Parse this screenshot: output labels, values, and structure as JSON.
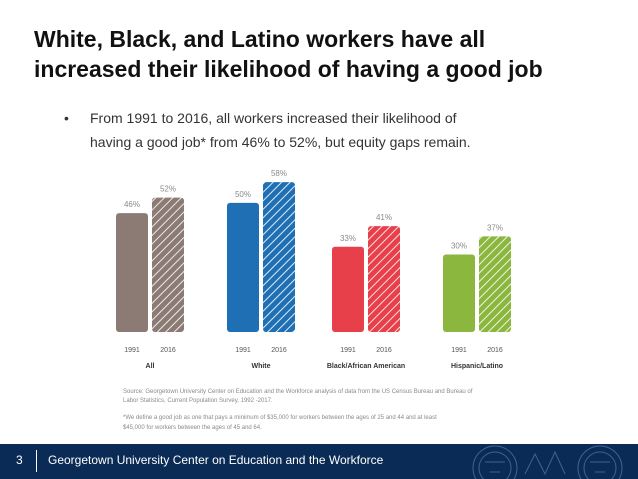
{
  "slide": {
    "title_line1": "White, Black, and Latino workers have all",
    "title_line2": "increased their likelihood of having a good job",
    "bullet_symbol": "•",
    "bullet_text_line1": "From 1991 to 2016, all workers increased their likelihood of",
    "bullet_text_line2": "having a good job* from 46% to 52%, but equity gaps remain.",
    "source_line1": "Source: Georgetown University Center on Education and the Workforce analysis of data from the US Census Bureau and Bureau of",
    "source_line2": "Labor Statistics, Current Population Survey, 1992 -2017.",
    "footnote_line1": "*We define a good job as one that pays a minimum of $35,000 for workers between the ages of 25 and 44 and at least",
    "footnote_line2": "$45,000 for workers between the ages of 45 and 64.",
    "page_number": "3",
    "footer_org": "Georgetown University Center on Education and the Workforce"
  },
  "chart_data": {
    "type": "bar",
    "categories": [
      "All",
      "White",
      "Black/African American",
      "Hispanic/Latino"
    ],
    "years": [
      "1991",
      "2016"
    ],
    "values_1991": [
      46,
      50,
      33,
      30
    ],
    "values_2016": [
      52,
      58,
      41,
      37
    ],
    "value_labels_1991": [
      "46%",
      "50%",
      "33%",
      "30%"
    ],
    "value_labels_2016": [
      "52%",
      "58%",
      "41%",
      "37%"
    ],
    "colors": [
      "#8b7b74",
      "#1f6fb5",
      "#e8404a",
      "#8bb73f"
    ],
    "ylim": [
      0,
      60
    ],
    "grid": false,
    "legend": "none",
    "pattern_2016": "diagonal-hatch"
  }
}
